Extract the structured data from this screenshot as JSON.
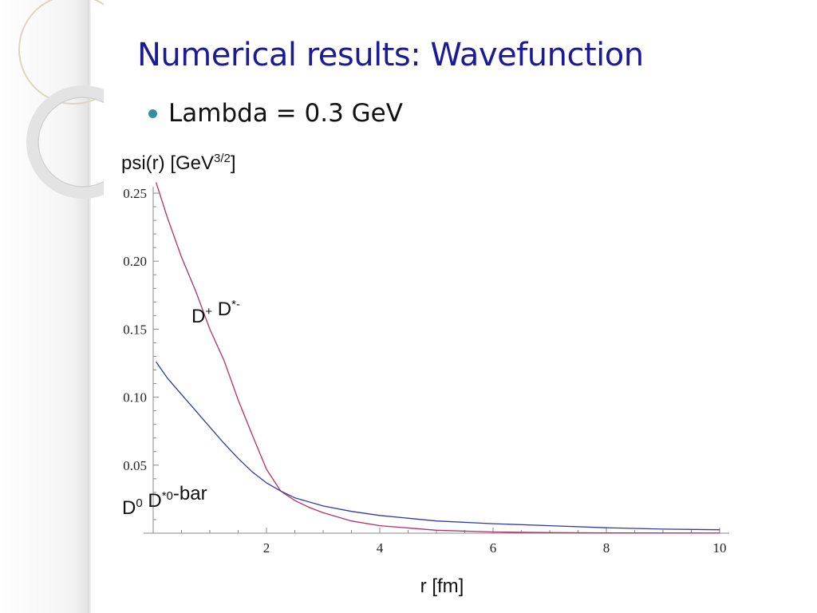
{
  "slide": {
    "title": "Numerical results: Wavefunction",
    "bullet": "Lambda = 0.3 GeV"
  },
  "chart_data": {
    "type": "line",
    "ylabel": {
      "base": "psi(r) [GeV",
      "sup": "3/2",
      "tail": "]"
    },
    "xlabel": "r [fm]",
    "xlim": [
      0,
      10
    ],
    "ylim": [
      0,
      0.25
    ],
    "x_ticks": [
      {
        "value": 2,
        "label": "2"
      },
      {
        "value": 4,
        "label": "4"
      },
      {
        "value": 6,
        "label": "6"
      },
      {
        "value": 8,
        "label": "8"
      },
      {
        "value": 10,
        "label": "10"
      }
    ],
    "y_ticks": [
      {
        "value": 0.05,
        "label": "0.05"
      },
      {
        "value": 0.1,
        "label": "0.10"
      },
      {
        "value": 0.15,
        "label": "0.15"
      },
      {
        "value": 0.2,
        "label": "0.20"
      },
      {
        "value": 0.25,
        "label": "0.25"
      }
    ],
    "x_minor_step": 0.5,
    "y_minor_step": 0.01,
    "series": [
      {
        "name": "D+ D*-",
        "label_parts": [
          {
            "text": "D",
            "sup": "+"
          },
          {
            "text": " D",
            "sup": "*-"
          }
        ],
        "color": "#b0306a",
        "points": [
          [
            0.05,
            0.258
          ],
          [
            0.25,
            0.232
          ],
          [
            0.5,
            0.203
          ],
          [
            0.75,
            0.178
          ],
          [
            1.0,
            0.15
          ],
          [
            1.25,
            0.127
          ],
          [
            1.5,
            0.098
          ],
          [
            1.75,
            0.072
          ],
          [
            2.0,
            0.047
          ],
          [
            2.25,
            0.031
          ],
          [
            2.5,
            0.024
          ],
          [
            2.75,
            0.019
          ],
          [
            3.0,
            0.015
          ],
          [
            3.5,
            0.009
          ],
          [
            4.0,
            0.0055
          ],
          [
            5.0,
            0.0022
          ],
          [
            6.0,
            0.0009
          ],
          [
            7.0,
            0.0004
          ],
          [
            8.0,
            0.0002
          ],
          [
            10.0,
            0.0001
          ]
        ]
      },
      {
        "name": "D0 D*0-bar",
        "label_parts": [
          {
            "text": "D",
            "sup": "0"
          },
          {
            "text": " D",
            "sup": "*0"
          },
          {
            "text": "-bar",
            "sup": ""
          }
        ],
        "color": "#2e3a9e",
        "points": [
          [
            0.05,
            0.126
          ],
          [
            0.25,
            0.114
          ],
          [
            0.5,
            0.102
          ],
          [
            0.75,
            0.09
          ],
          [
            1.0,
            0.078
          ],
          [
            1.25,
            0.066
          ],
          [
            1.5,
            0.055
          ],
          [
            1.75,
            0.045
          ],
          [
            2.0,
            0.037
          ],
          [
            2.25,
            0.031
          ],
          [
            2.5,
            0.026
          ],
          [
            3.0,
            0.02
          ],
          [
            3.5,
            0.016
          ],
          [
            4.0,
            0.013
          ],
          [
            5.0,
            0.009
          ],
          [
            6.0,
            0.007
          ],
          [
            7.0,
            0.0055
          ],
          [
            8.0,
            0.004
          ],
          [
            9.0,
            0.003
          ],
          [
            10.0,
            0.0025
          ]
        ]
      }
    ]
  }
}
